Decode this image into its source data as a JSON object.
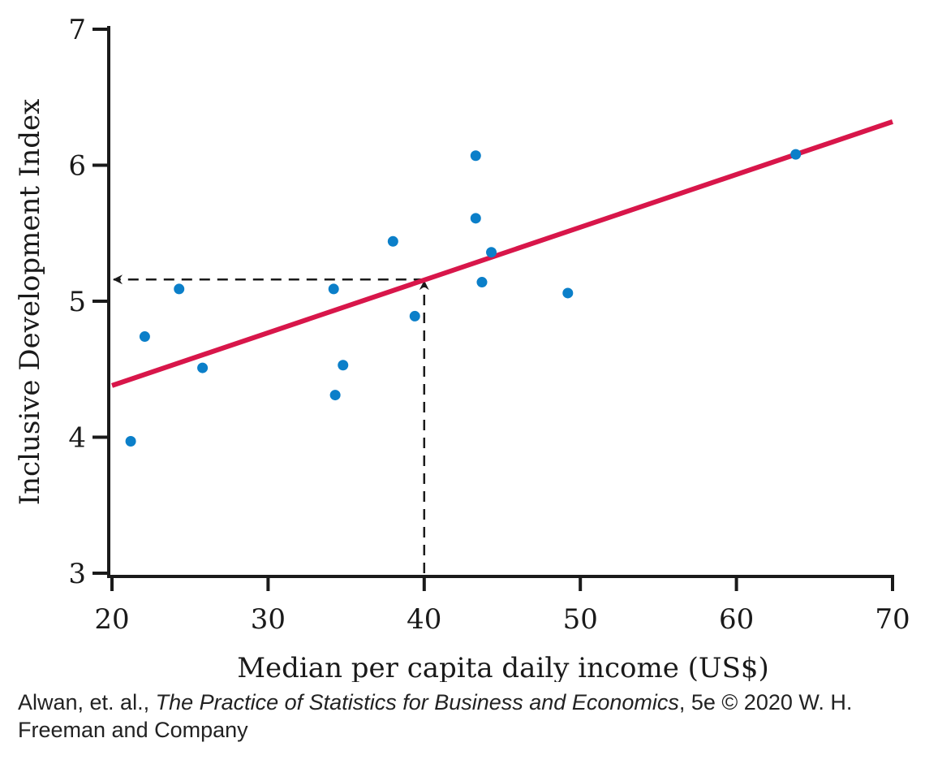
{
  "chart_data": {
    "type": "scatter",
    "title": "",
    "xlabel": "Median per capita daily income (US$)",
    "ylabel": "Inclusive Development Index",
    "xlim": [
      20,
      70
    ],
    "ylim": [
      3,
      7
    ],
    "x_ticks": [
      20,
      30,
      40,
      50,
      60,
      70
    ],
    "y_ticks": [
      3,
      4,
      5,
      6,
      7
    ],
    "grid": false,
    "legend": "none",
    "points": [
      {
        "x": 21.2,
        "y": 3.97
      },
      {
        "x": 22.1,
        "y": 4.74
      },
      {
        "x": 24.3,
        "y": 5.09
      },
      {
        "x": 25.8,
        "y": 4.51
      },
      {
        "x": 34.2,
        "y": 5.09
      },
      {
        "x": 34.3,
        "y": 4.31
      },
      {
        "x": 34.8,
        "y": 4.53
      },
      {
        "x": 38.0,
        "y": 5.44
      },
      {
        "x": 39.4,
        "y": 4.89
      },
      {
        "x": 43.3,
        "y": 6.07
      },
      {
        "x": 43.3,
        "y": 5.61
      },
      {
        "x": 43.7,
        "y": 5.14
      },
      {
        "x": 44.3,
        "y": 5.36
      },
      {
        "x": 49.2,
        "y": 5.06
      },
      {
        "x": 63.8,
        "y": 6.08
      }
    ],
    "regression_line": {
      "x": [
        20,
        70
      ],
      "y": [
        4.38,
        6.32
      ]
    },
    "prediction": {
      "x": 40,
      "y": 5.16
    },
    "colors": {
      "points": "#0b7fc9",
      "line": "#d8164a",
      "axes": "#1a1a1a",
      "guide": "#1a1a1a"
    }
  },
  "credit": {
    "authors": "Alwan, et. al., ",
    "book_title": "The Practice of Statistics for Business and Economics",
    "edition": ", 5e © 2020 W. H. Freeman and Company"
  }
}
